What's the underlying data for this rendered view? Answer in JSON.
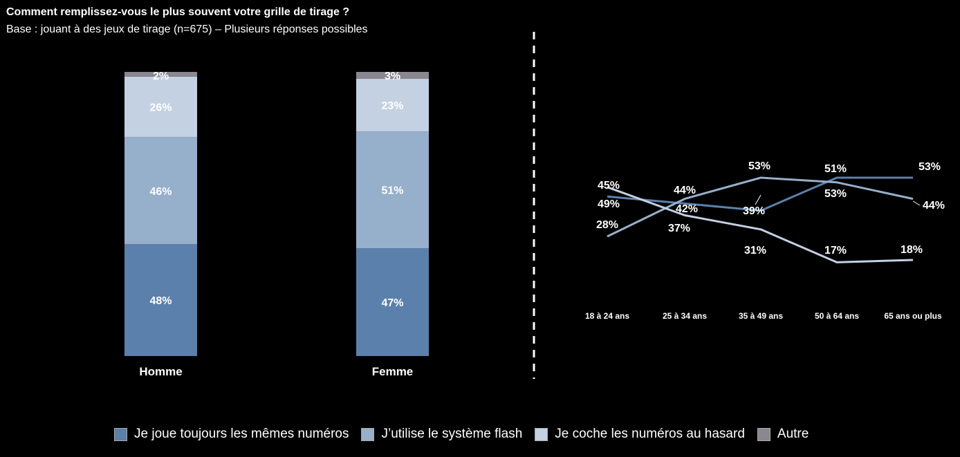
{
  "header": {
    "title": "Comment remplissez-vous le plus souvent votre grille de tirage ?",
    "subtitle": "Base : jouant à des jeux de tirage (n=675) – Plusieurs réponses possibles"
  },
  "colors": {
    "memes": "#5b80ab",
    "flash": "#96afcb",
    "hasard": "#c3d1e2",
    "autre": "#8a8791",
    "background": "#000000",
    "text": "#ffffff"
  },
  "chart_data": [
    {
      "type": "bar",
      "stacked": true,
      "categories": [
        "Homme",
        "Femme"
      ],
      "series": [
        {
          "name": "Je joue toujours les mêmes numéros",
          "values": [
            48,
            47
          ],
          "labels": [
            "48%",
            "47%"
          ]
        },
        {
          "name": "J’utilise le système flash",
          "values": [
            46,
            51
          ],
          "labels": [
            "46%",
            "51%"
          ]
        },
        {
          "name": "Je coche les numéros au hasard",
          "values": [
            26,
            23
          ],
          "labels": [
            "26%",
            "23%"
          ]
        },
        {
          "name": "Autre",
          "values": [
            2,
            3
          ],
          "labels": [
            "2%",
            "3%"
          ]
        }
      ]
    },
    {
      "type": "line",
      "categories": [
        "18 à 24 ans",
        "25 à 34 ans",
        "35 à 49 ans",
        "50 à 64 ans",
        "65 ans ou plus"
      ],
      "series": [
        {
          "name": "Je joue toujours les mêmes numéros",
          "values": [
            45,
            42,
            39,
            53,
            53
          ],
          "labels": [
            "45%",
            "42%",
            "39%",
            "53%",
            "53%"
          ]
        },
        {
          "name": "J’utilise le système flash",
          "values": [
            28,
            44,
            53,
            51,
            44
          ],
          "labels": [
            "28%",
            "44%",
            "53%",
            "51%",
            "44%"
          ]
        },
        {
          "name": "Je coche les numéros au hasard",
          "values": [
            49,
            37,
            31,
            17,
            18
          ],
          "labels": [
            "49%",
            "37%",
            "31%",
            "17%",
            "18%"
          ]
        }
      ]
    }
  ],
  "legend": [
    {
      "label": "Je joue toujours les mêmes numéros",
      "color": "#5b80ab"
    },
    {
      "label": "J’utilise le système flash",
      "color": "#96afcb"
    },
    {
      "label": "Je coche les numéros au hasard",
      "color": "#c3d1e2"
    },
    {
      "label": "Autre",
      "color": "#8a8791"
    }
  ]
}
